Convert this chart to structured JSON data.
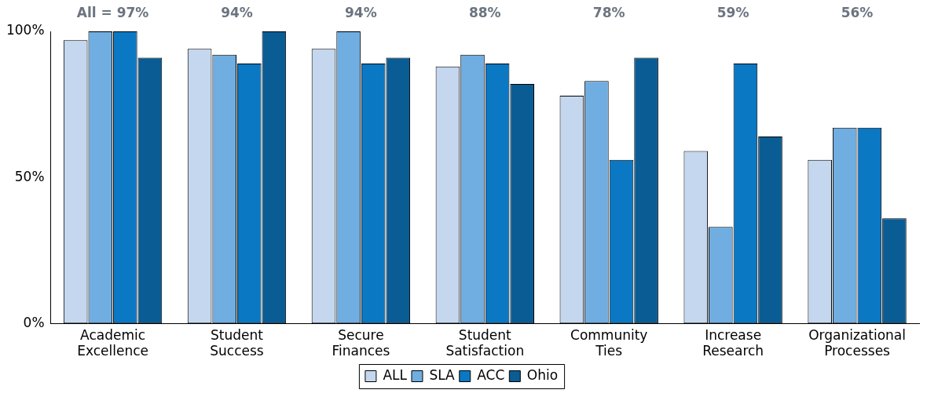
{
  "chart_data": {
    "type": "bar",
    "categories": [
      "Academic Excellence",
      "Student Success",
      "Secure Finances",
      "Student Satisfaction",
      "Community Ties",
      "Increase Research",
      "Organizational Processes"
    ],
    "series": [
      {
        "name": "ALL",
        "color": "#c5d7ef",
        "values": [
          97,
          94,
          94,
          88,
          78,
          59,
          56
        ]
      },
      {
        "name": "SLA",
        "color": "#70ade0",
        "values": [
          100,
          92,
          100,
          92,
          83,
          33,
          67
        ]
      },
      {
        "name": "ACC",
        "color": "#0b78c4",
        "values": [
          100,
          89,
          89,
          89,
          56,
          89,
          67
        ]
      },
      {
        "name": "Ohio",
        "color": "#0a5c94",
        "values": [
          91,
          100,
          91,
          82,
          91,
          64,
          36
        ]
      }
    ],
    "ylim": [
      0,
      100
    ],
    "yticks": [
      {
        "value": 0,
        "label": "0%"
      },
      {
        "value": 50,
        "label": "50%"
      },
      {
        "value": 100,
        "label": "100%"
      }
    ],
    "grid": false,
    "legend": "bottom",
    "annotations": [
      "All = 97%",
      "94%",
      "94%",
      "88%",
      "78%",
      "59%",
      "56%"
    ]
  }
}
